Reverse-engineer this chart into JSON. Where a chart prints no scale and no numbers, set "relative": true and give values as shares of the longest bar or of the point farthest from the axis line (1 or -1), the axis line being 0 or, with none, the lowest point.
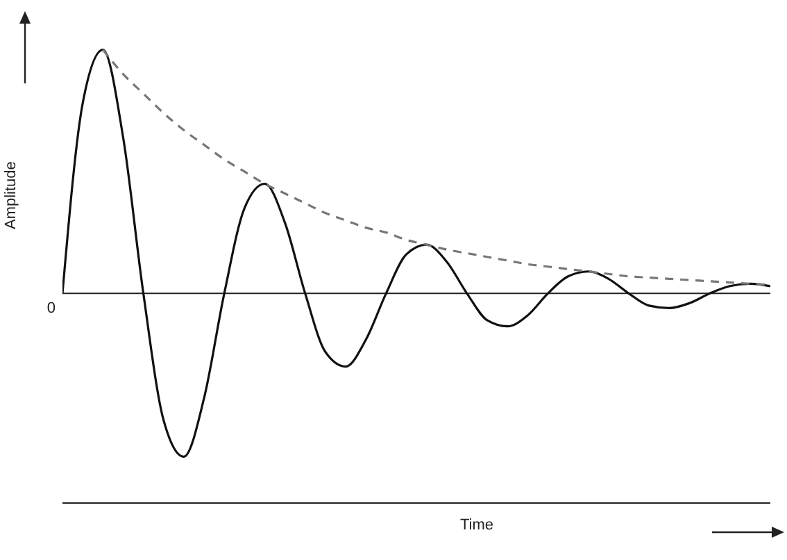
{
  "chart_data": {
    "type": "line",
    "relative": true,
    "xlabel": "Time",
    "ylabel": "Amplitude",
    "marker": "none",
    "categories": [
      null,
      null,
      null,
      null,
      null,
      null,
      null,
      null,
      null,
      null,
      null,
      null,
      null,
      null,
      null,
      null,
      null,
      null,
      null,
      null,
      null,
      null,
      null,
      null,
      null,
      null,
      null,
      null,
      null,
      null,
      null,
      null,
      null,
      null,
      null,
      null
    ],
    "ref_lines": [
      {
        "axis": "y",
        "value": 0,
        "label": "0",
        "color": "#222222"
      }
    ],
    "series": [
      {
        "color": "#111111",
        "line_style": "solid",
        "values": [
          0,
          0.78,
          1,
          0.64,
          0,
          -0.52,
          -0.67,
          -0.43,
          0,
          0.35,
          0.45,
          0.29,
          0,
          -0.24,
          -0.3,
          -0.19,
          0,
          0.16,
          0.2,
          0.13,
          0,
          -0.11,
          -0.135,
          -0.09,
          0,
          0.07,
          0.09,
          0.06,
          0,
          -0.05,
          -0.06,
          -0.04,
          0,
          0.03,
          0.04,
          0.03
        ]
      },
      {
        "color": "#777777",
        "line_style": "dashed",
        "values": [
          null,
          null,
          1,
          0.9,
          0.82,
          0.74,
          0.67,
          0.61,
          0.55,
          0.5,
          0.45,
          0.41,
          0.37,
          0.33,
          0.3,
          0.27,
          0.25,
          0.22,
          0.2,
          0.18,
          0.165,
          0.15,
          0.135,
          0.12,
          0.11,
          0.1,
          0.09,
          0.08,
          0.07,
          0.065,
          0.06,
          0.055,
          0.05,
          0.045,
          0.04,
          0.035
        ]
      }
    ]
  }
}
